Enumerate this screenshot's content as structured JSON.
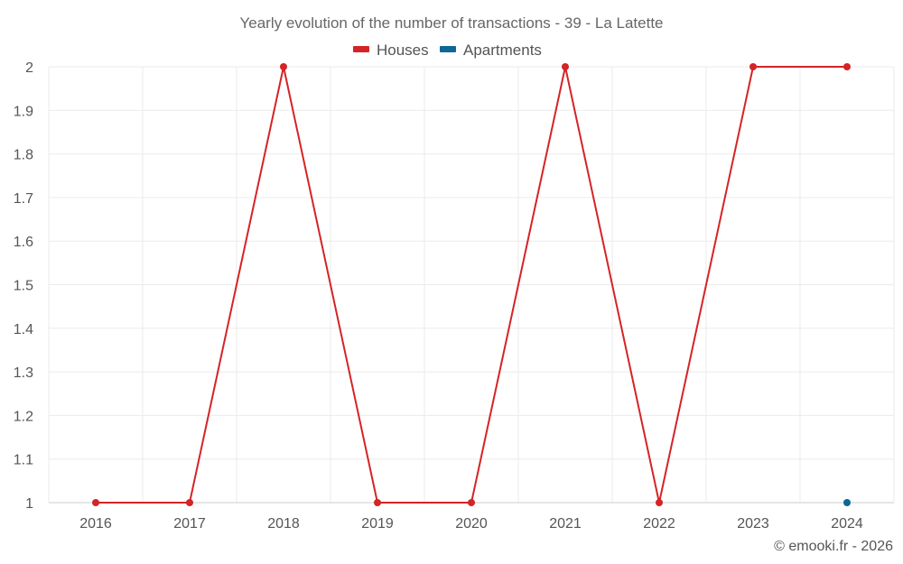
{
  "chart_data": {
    "type": "line",
    "title": "Yearly evolution of the number of transactions - 39 - La Latette",
    "categories": [
      "2016",
      "2017",
      "2018",
      "2019",
      "2020",
      "2021",
      "2022",
      "2023",
      "2024"
    ],
    "series": [
      {
        "name": "Houses",
        "color": "#d42426",
        "values": [
          1,
          1,
          2,
          1,
          1,
          2,
          1,
          2,
          2
        ]
      },
      {
        "name": "Apartments",
        "color": "#0e6699",
        "values": [
          null,
          null,
          null,
          null,
          null,
          null,
          null,
          null,
          1
        ]
      }
    ],
    "yticks": [
      "1",
      "1.1",
      "1.2",
      "1.3",
      "1.4",
      "1.5",
      "1.6",
      "1.7",
      "1.8",
      "1.9",
      "2"
    ],
    "ylim": [
      1,
      2
    ],
    "xlabel": "",
    "ylabel": "",
    "grid": true,
    "legend_position": "top-center",
    "credit": "© emooki.fr - 2026"
  }
}
